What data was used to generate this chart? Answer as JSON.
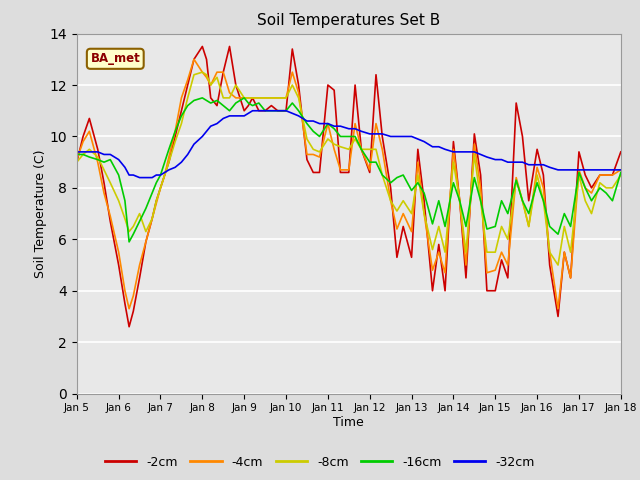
{
  "title": "Soil Temperatures Set B",
  "xlabel": "Time",
  "ylabel": "Soil Temperature (C)",
  "ylim": [
    0,
    14
  ],
  "yticks": [
    0,
    2,
    4,
    6,
    8,
    10,
    12,
    14
  ],
  "xtick_labels": [
    "Jan 5",
    "Jan 6",
    "Jan 7",
    "Jan 8",
    "Jan 9",
    "Jan 10",
    "Jan 11",
    "Jan 12",
    "Jan 13",
    "Jan 14",
    "Jan 15",
    "Jan 16",
    "Jan 17",
    "Jan 18"
  ],
  "label_text": "BA_met",
  "colors": {
    "-2cm": "#cc0000",
    "-4cm": "#ff8800",
    "-8cm": "#cccc00",
    "-16cm": "#00cc00",
    "-32cm": "#0000ee"
  },
  "bg_color": "#dddddd",
  "plot_bg": "#e8e8e8",
  "x": [
    0.0,
    0.15,
    0.3,
    0.5,
    0.65,
    0.8,
    1.0,
    1.15,
    1.25,
    1.35,
    1.5,
    1.65,
    1.8,
    1.9,
    2.0,
    2.1,
    2.2,
    2.35,
    2.5,
    2.65,
    2.8,
    3.0,
    3.1,
    3.2,
    3.35,
    3.5,
    3.65,
    3.8,
    4.0,
    4.1,
    4.2,
    4.35,
    4.5,
    4.65,
    4.8,
    5.0,
    5.15,
    5.3,
    5.5,
    5.65,
    5.8,
    6.0,
    6.15,
    6.3,
    6.5,
    6.65,
    6.8,
    7.0,
    7.15,
    7.3,
    7.5,
    7.65,
    7.8,
    8.0,
    8.15,
    8.3,
    8.5,
    8.65,
    8.8,
    9.0,
    9.15,
    9.3,
    9.5,
    9.65,
    9.8,
    10.0,
    10.15,
    10.3,
    10.5,
    10.65,
    10.8,
    11.0,
    11.15,
    11.3,
    11.5,
    11.65,
    11.8,
    12.0,
    12.15,
    12.3,
    12.5,
    12.65,
    12.8,
    13.0
  ],
  "series": {
    "-2cm": [
      9.0,
      10.0,
      10.7,
      9.5,
      8.2,
      6.7,
      5.0,
      3.5,
      2.6,
      3.2,
      4.5,
      5.9,
      6.8,
      7.5,
      8.0,
      8.5,
      9.0,
      10.0,
      11.0,
      12.0,
      13.0,
      13.5,
      13.0,
      11.5,
      11.2,
      12.5,
      13.5,
      12.0,
      11.0,
      11.2,
      11.5,
      11.0,
      11.0,
      11.2,
      11.0,
      11.0,
      13.4,
      12.0,
      9.1,
      8.6,
      8.6,
      12.0,
      11.8,
      8.6,
      8.6,
      12.0,
      9.5,
      8.6,
      12.4,
      10.0,
      8.0,
      5.3,
      6.5,
      5.3,
      9.5,
      7.5,
      4.0,
      5.8,
      4.0,
      9.8,
      7.5,
      4.5,
      10.1,
      8.5,
      4.0,
      4.0,
      5.2,
      4.5,
      11.3,
      10.0,
      7.5,
      9.5,
      8.5,
      5.0,
      3.0,
      5.5,
      4.5,
      9.4,
      8.5,
      8.0,
      8.5,
      8.5,
      8.5,
      9.4
    ],
    "-4cm": [
      9.1,
      9.8,
      10.2,
      9.0,
      7.8,
      6.9,
      5.5,
      4.0,
      3.3,
      3.8,
      5.0,
      5.9,
      6.8,
      7.4,
      8.0,
      8.5,
      9.2,
      10.2,
      11.5,
      12.2,
      13.0,
      12.5,
      12.3,
      12.0,
      12.5,
      12.5,
      11.7,
      11.5,
      11.5,
      11.5,
      11.5,
      11.5,
      11.5,
      11.5,
      11.5,
      11.5,
      12.5,
      11.7,
      9.3,
      9.3,
      9.2,
      10.5,
      9.5,
      8.7,
      8.7,
      10.5,
      9.5,
      8.7,
      10.5,
      9.5,
      7.5,
      6.4,
      7.0,
      6.3,
      9.0,
      7.0,
      4.8,
      5.5,
      4.7,
      9.5,
      7.5,
      5.0,
      9.7,
      8.0,
      4.7,
      4.8,
      5.5,
      5.0,
      8.4,
      7.5,
      6.5,
      8.8,
      8.0,
      5.5,
      3.3,
      5.5,
      4.5,
      8.7,
      8.0,
      7.8,
      8.5,
      8.5,
      8.5,
      8.7
    ],
    "-8cm": [
      9.0,
      9.3,
      9.5,
      9.2,
      8.7,
      8.2,
      7.5,
      6.8,
      6.3,
      6.5,
      7.0,
      6.3,
      6.8,
      7.5,
      8.0,
      8.5,
      9.0,
      9.8,
      10.5,
      11.5,
      12.4,
      12.5,
      12.4,
      12.0,
      12.3,
      11.5,
      11.5,
      12.0,
      11.5,
      11.5,
      11.5,
      11.5,
      11.5,
      11.5,
      11.5,
      11.5,
      12.0,
      11.5,
      9.9,
      9.5,
      9.4,
      9.9,
      9.7,
      9.6,
      9.5,
      9.9,
      9.5,
      9.5,
      9.5,
      8.5,
      7.5,
      7.1,
      7.5,
      7.0,
      8.5,
      7.0,
      5.6,
      6.5,
      5.5,
      9.0,
      7.5,
      5.5,
      9.3,
      7.5,
      5.5,
      5.5,
      6.5,
      6.0,
      8.3,
      7.5,
      6.5,
      8.5,
      7.5,
      5.5,
      5.0,
      6.5,
      5.5,
      8.5,
      7.5,
      7.0,
      8.2,
      8.0,
      8.0,
      8.5
    ],
    "-16cm": [
      9.3,
      9.3,
      9.2,
      9.1,
      9.0,
      9.1,
      8.5,
      7.5,
      5.9,
      6.2,
      6.7,
      7.2,
      7.8,
      8.2,
      8.5,
      9.0,
      9.5,
      10.2,
      10.8,
      11.2,
      11.4,
      11.5,
      11.4,
      11.3,
      11.4,
      11.2,
      11.0,
      11.3,
      11.5,
      11.3,
      11.2,
      11.3,
      11.0,
      11.0,
      11.0,
      11.0,
      11.3,
      11.0,
      10.5,
      10.2,
      10.0,
      10.5,
      10.3,
      10.0,
      10.0,
      10.0,
      9.5,
      9.0,
      9.0,
      8.5,
      8.2,
      8.4,
      8.5,
      7.9,
      8.2,
      7.8,
      6.6,
      7.5,
      6.5,
      8.2,
      7.5,
      6.5,
      8.4,
      7.5,
      6.4,
      6.5,
      7.5,
      7.0,
      8.3,
      7.5,
      7.0,
      8.2,
      7.5,
      6.5,
      6.2,
      7.0,
      6.5,
      8.6,
      8.0,
      7.5,
      8.0,
      7.8,
      7.5,
      8.6
    ],
    "-32cm": [
      9.4,
      9.4,
      9.4,
      9.4,
      9.3,
      9.3,
      9.1,
      8.8,
      8.5,
      8.5,
      8.4,
      8.4,
      8.4,
      8.5,
      8.5,
      8.6,
      8.7,
      8.8,
      9.0,
      9.3,
      9.7,
      10.0,
      10.2,
      10.4,
      10.5,
      10.7,
      10.8,
      10.8,
      10.8,
      10.9,
      11.0,
      11.0,
      11.0,
      11.0,
      11.0,
      11.0,
      10.9,
      10.8,
      10.6,
      10.6,
      10.5,
      10.5,
      10.4,
      10.4,
      10.3,
      10.3,
      10.2,
      10.1,
      10.1,
      10.1,
      10.0,
      10.0,
      10.0,
      10.0,
      9.9,
      9.8,
      9.6,
      9.6,
      9.5,
      9.4,
      9.4,
      9.4,
      9.4,
      9.3,
      9.2,
      9.1,
      9.1,
      9.0,
      9.0,
      9.0,
      8.9,
      8.9,
      8.9,
      8.8,
      8.7,
      8.7,
      8.7,
      8.7,
      8.7,
      8.7,
      8.7,
      8.7,
      8.7,
      8.7
    ]
  }
}
